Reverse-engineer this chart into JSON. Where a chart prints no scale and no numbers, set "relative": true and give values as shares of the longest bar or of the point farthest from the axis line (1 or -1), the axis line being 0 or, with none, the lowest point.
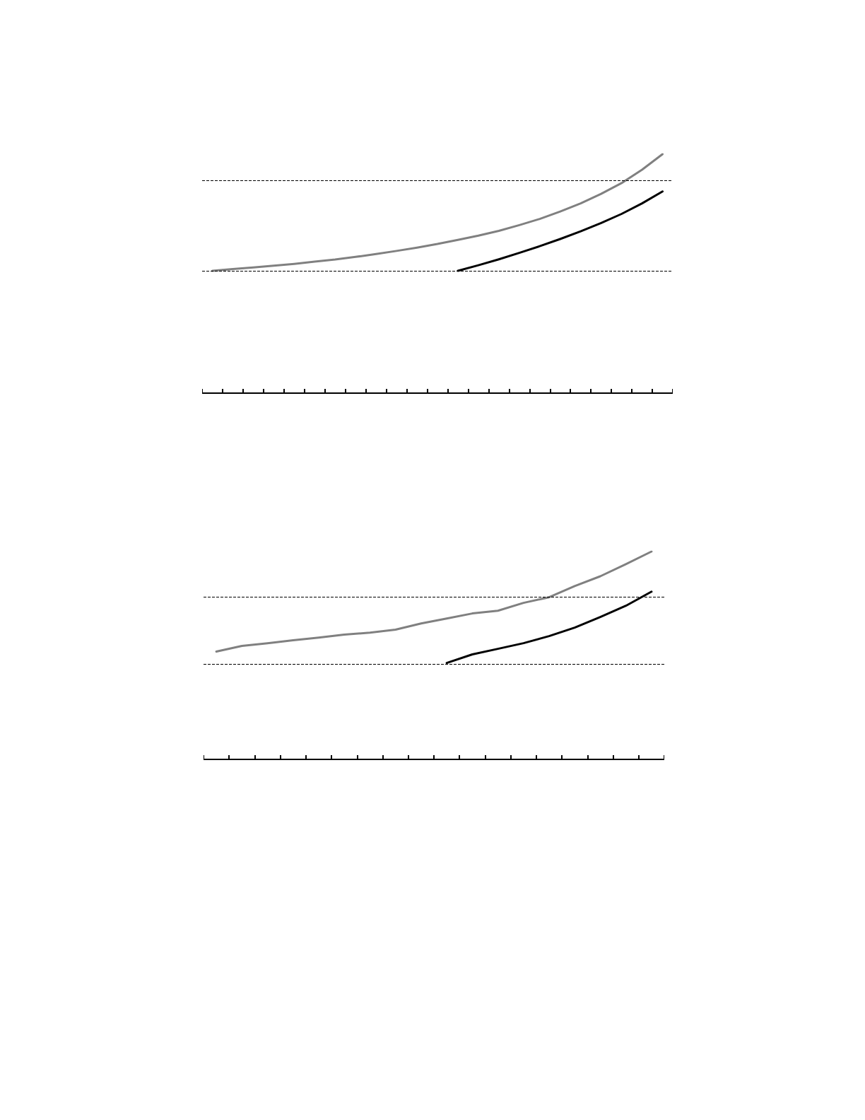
{
  "chart_data": [
    {
      "type": "line",
      "relative": true,
      "grid": false,
      "marker": "none",
      "line_style": "solid",
      "categories": [
        null,
        null,
        null,
        null,
        null,
        null,
        null,
        null,
        null,
        null,
        null,
        null,
        null,
        null,
        null,
        null,
        null,
        null,
        null,
        null,
        null,
        null,
        null
      ],
      "series": [
        {
          "color": "#808080",
          "values": [
            0.512,
            0.519,
            0.526,
            0.533,
            0.541,
            0.55,
            0.559,
            0.57,
            0.582,
            0.595,
            0.609,
            0.624,
            0.641,
            0.659,
            0.679,
            0.703,
            0.729,
            0.76,
            0.794,
            0.834,
            0.879,
            0.935,
            1
          ]
        },
        {
          "color": "#000000",
          "values": [
            null,
            null,
            null,
            null,
            null,
            null,
            null,
            null,
            null,
            null,
            null,
            null,
            0.512,
            0.535,
            0.56,
            0.587,
            0.615,
            0.645,
            0.677,
            0.712,
            0.75,
            0.794,
            0.844
          ]
        }
      ],
      "ref_lines": [
        {
          "axis": "y",
          "value": 0.885,
          "color": "#000000",
          "line_style": "dashed"
        },
        {
          "axis": "y",
          "value": 0.512,
          "color": "#000000",
          "line_style": "dashed"
        }
      ]
    },
    {
      "type": "line",
      "relative": true,
      "grid": false,
      "marker": "none",
      "line_style": "solid",
      "categories": [
        null,
        null,
        null,
        null,
        null,
        null,
        null,
        null,
        null,
        null,
        null,
        null,
        null,
        null,
        null,
        null,
        null,
        null
      ],
      "series": [
        {
          "color": "#808080",
          "values": [
            0.519,
            0.546,
            0.559,
            0.573,
            0.586,
            0.6,
            0.61,
            0.624,
            0.654,
            0.678,
            0.702,
            0.715,
            0.753,
            0.78,
            0.834,
            0.881,
            0.939,
            1
          ]
        },
        {
          "color": "#000000",
          "values": [
            null,
            null,
            null,
            null,
            null,
            null,
            null,
            null,
            null,
            0.464,
            0.505,
            0.532,
            0.559,
            0.593,
            0.634,
            0.685,
            0.739,
            0.807
          ]
        }
      ],
      "ref_lines": [
        {
          "axis": "y",
          "value": 0.776,
          "color": "#000000",
          "line_style": "dashed"
        },
        {
          "axis": "y",
          "value": 0.461,
          "color": "#000000",
          "line_style": "dashed"
        }
      ]
    }
  ]
}
